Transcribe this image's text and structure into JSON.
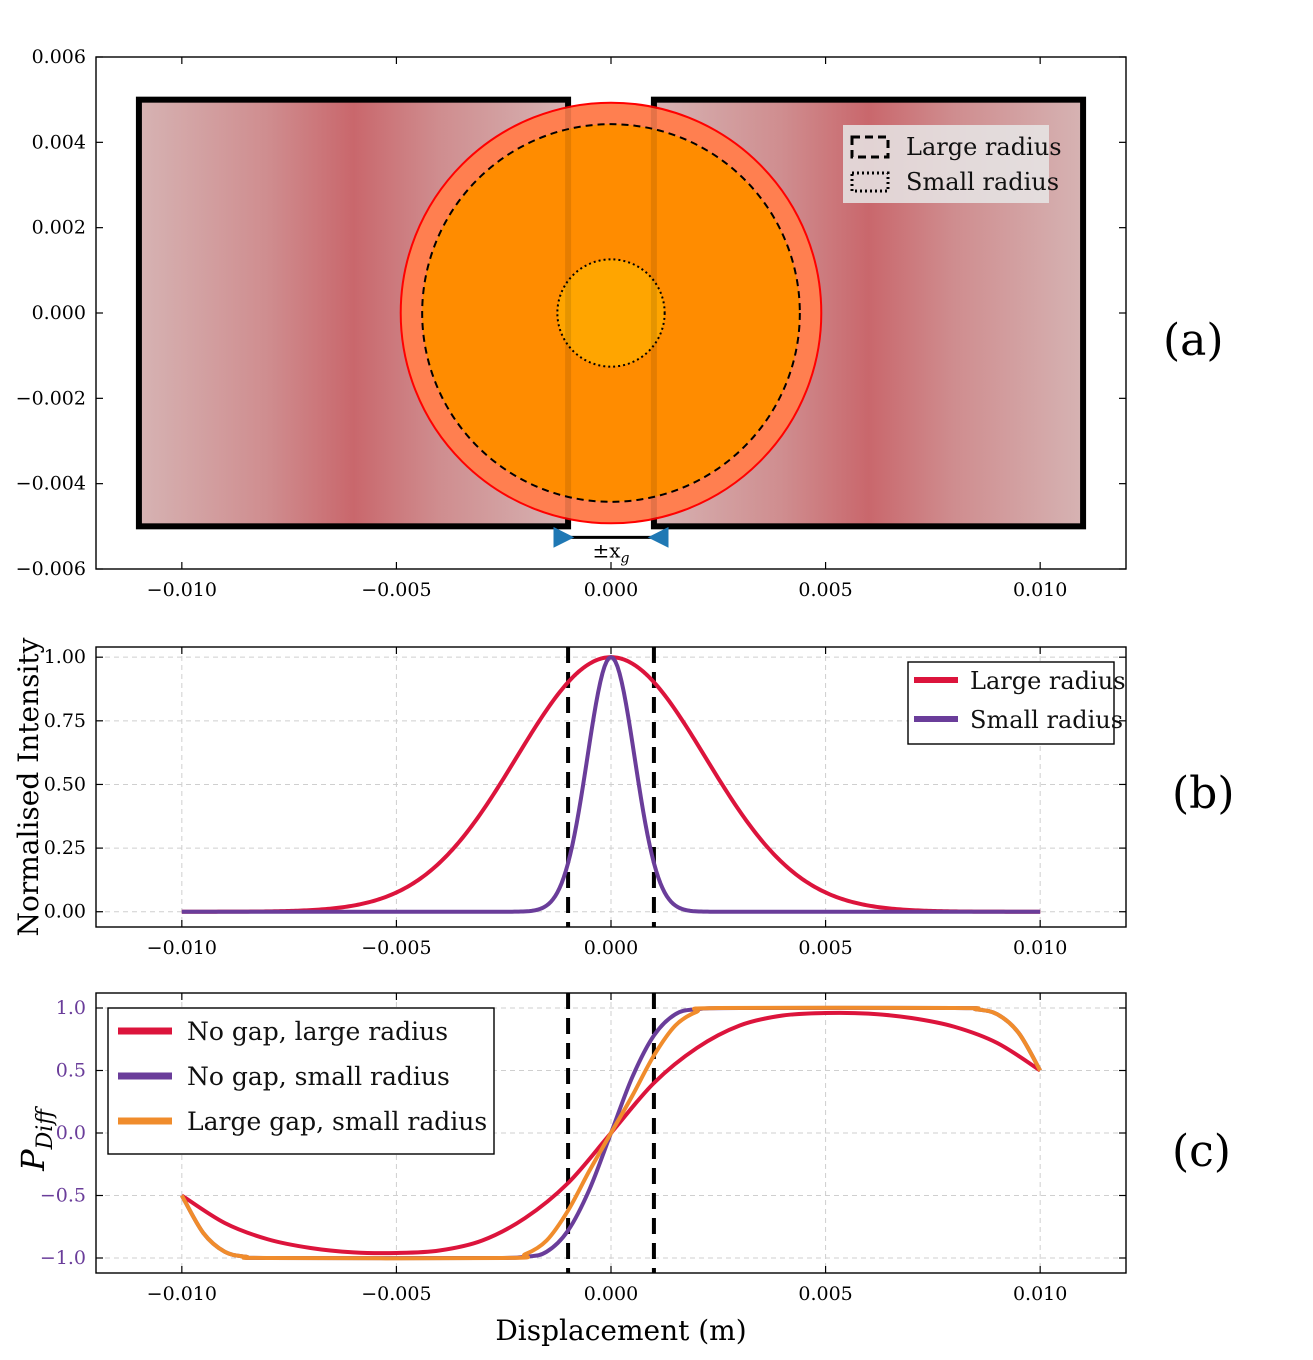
{
  "colors": {
    "large_radius": "#dc143c",
    "small_radius": "#6a3d9a",
    "large_gap": "#f08c2c",
    "circle_fill": "#ff8c00",
    "circle_outer": "#ff7f50",
    "inner_circle": "#ffa500",
    "heat_center": "#c8646a",
    "heat_edge": "#d6b2b2"
  },
  "panel_labels": {
    "a": "(a)",
    "b": "(b)",
    "c": "(c)"
  },
  "gap_label": "±x",
  "gap_label_sub": "g",
  "chart_data": [
    {
      "id": "a",
      "type": "diagram",
      "xlim": [
        -0.012,
        0.012
      ],
      "ylim": [
        -0.006,
        0.006
      ],
      "x_ticks": [
        -0.01,
        -0.005,
        0.0,
        0.005,
        0.01
      ],
      "x_tick_labels": [
        "−0.010",
        "−0.005",
        "0.000",
        "0.005",
        "0.010"
      ],
      "y_ticks": [
        0.006,
        0.004,
        0.002,
        0.0,
        -0.002,
        -0.004,
        -0.006
      ],
      "y_tick_labels": [
        "0.006",
        "0.004",
        "0.002",
        "0.000",
        "−0.002",
        "−0.004",
        "−0.006"
      ],
      "electrodes": [
        {
          "x0": -0.011,
          "x1": -0.001,
          "y0": -0.005,
          "y1": 0.005
        },
        {
          "x0": 0.001,
          "x1": 0.011,
          "y0": -0.005,
          "y1": 0.005
        }
      ],
      "beam_outer_radius": 0.0049,
      "large_radius": 0.0044,
      "small_radius": 0.00125,
      "gap_half_width": 0.001,
      "legend": [
        "Large radius",
        "Small radius"
      ]
    },
    {
      "id": "b",
      "type": "line",
      "xlim": [
        -0.012,
        0.012
      ],
      "ylim": [
        -0.06,
        1.04
      ],
      "x_ticks": [
        -0.01,
        -0.005,
        0.0,
        0.005,
        0.01
      ],
      "x_tick_labels": [
        "−0.010",
        "−0.005",
        "0.000",
        "0.005",
        "0.010"
      ],
      "y_ticks": [
        1.0,
        0.75,
        0.5,
        0.25,
        0.0
      ],
      "y_tick_labels": [
        "1.00",
        "0.75",
        "0.50",
        "0.25",
        "0.00"
      ],
      "ylabel": "Normalised Intensity",
      "vlines": [
        -0.001,
        0.001
      ],
      "series": [
        {
          "name": "Large radius",
          "model": "gaussian",
          "sigma": 0.0022,
          "color": "#dc143c"
        },
        {
          "name": "Small radius",
          "model": "gaussian",
          "sigma": 0.00055,
          "color": "#6a3d9a"
        }
      ],
      "x_range": [
        -0.01,
        0.01
      ],
      "legend": [
        "Large radius",
        "Small radius"
      ]
    },
    {
      "id": "c",
      "type": "line",
      "xlim": [
        -0.012,
        0.012
      ],
      "ylim": [
        -1.12,
        1.12
      ],
      "x_ticks": [
        -0.01,
        -0.005,
        0.0,
        0.005,
        0.01
      ],
      "x_tick_labels": [
        "−0.010",
        "−0.005",
        "0.000",
        "0.005",
        "0.010"
      ],
      "y_ticks": [
        1.0,
        0.5,
        0.0,
        -0.5,
        -1.0
      ],
      "y_tick_labels": [
        "1.0",
        "0.5",
        "0.0",
        "−0.5",
        "−1.0"
      ],
      "ylabel": "P",
      "ylabel_sub": "Diff",
      "xlabel": "Displacement (m)",
      "vlines": [
        -0.001,
        0.001
      ],
      "x_range": [
        -0.01,
        0.01
      ],
      "series": [
        {
          "name": "No gap, large radius",
          "color": "#dc143c",
          "points": [
            [
              -0.01,
              -0.5
            ],
            [
              -0.009,
              -0.72
            ],
            [
              -0.008,
              -0.85
            ],
            [
              -0.007,
              -0.92
            ],
            [
              -0.006,
              -0.955
            ],
            [
              -0.005,
              -0.96
            ],
            [
              -0.004,
              -0.94
            ],
            [
              -0.003,
              -0.86
            ],
            [
              -0.002,
              -0.68
            ],
            [
              -0.001,
              -0.4
            ],
            [
              0.0,
              0.0
            ],
            [
              0.001,
              0.4
            ],
            [
              0.002,
              0.68
            ],
            [
              0.003,
              0.86
            ],
            [
              0.004,
              0.94
            ],
            [
              0.005,
              0.96
            ],
            [
              0.006,
              0.955
            ],
            [
              0.007,
              0.92
            ],
            [
              0.008,
              0.85
            ],
            [
              0.009,
              0.72
            ],
            [
              0.01,
              0.5
            ]
          ]
        },
        {
          "name": "No gap, small radius",
          "color": "#6a3d9a",
          "points": [
            [
              -0.01,
              -0.5
            ],
            [
              -0.0095,
              -0.8
            ],
            [
              -0.009,
              -0.95
            ],
            [
              -0.0085,
              -0.99
            ],
            [
              -0.008,
              -1.0
            ],
            [
              -0.003,
              -1.0
            ],
            [
              -0.002,
              -0.99
            ],
            [
              -0.0015,
              -0.95
            ],
            [
              -0.001,
              -0.78
            ],
            [
              -0.0005,
              -0.45
            ],
            [
              0.0,
              0.0
            ],
            [
              0.0005,
              0.45
            ],
            [
              0.001,
              0.78
            ],
            [
              0.0015,
              0.95
            ],
            [
              0.002,
              0.99
            ],
            [
              0.003,
              1.0
            ],
            [
              0.008,
              1.0
            ],
            [
              0.0085,
              0.99
            ],
            [
              0.009,
              0.95
            ],
            [
              0.0095,
              0.8
            ],
            [
              0.01,
              0.5
            ]
          ]
        },
        {
          "name": "Large gap, small radius",
          "color": "#f08c2c",
          "points": [
            [
              -0.01,
              -0.5
            ],
            [
              -0.0095,
              -0.8
            ],
            [
              -0.009,
              -0.95
            ],
            [
              -0.0085,
              -0.99
            ],
            [
              -0.008,
              -1.0
            ],
            [
              -0.0025,
              -1.0
            ],
            [
              -0.002,
              -0.97
            ],
            [
              -0.0015,
              -0.86
            ],
            [
              -0.001,
              -0.62
            ],
            [
              -0.0005,
              -0.3
            ],
            [
              0.0,
              0.0
            ],
            [
              0.0005,
              0.3
            ],
            [
              0.001,
              0.62
            ],
            [
              0.0015,
              0.86
            ],
            [
              0.002,
              0.97
            ],
            [
              0.0025,
              1.0
            ],
            [
              0.008,
              1.0
            ],
            [
              0.0085,
              0.99
            ],
            [
              0.009,
              0.95
            ],
            [
              0.0095,
              0.8
            ],
            [
              0.01,
              0.5
            ]
          ]
        }
      ],
      "legend": [
        "No gap, large radius",
        "No gap, small radius",
        "Large gap, small radius"
      ]
    }
  ]
}
